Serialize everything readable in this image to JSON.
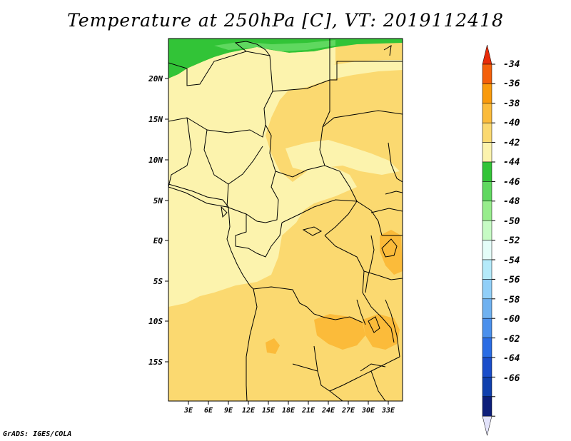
{
  "title": "Temperature at 250hPa [C], VT: 2019112418",
  "credit": "GrADS: IGES/COLA",
  "map": {
    "lat_ticks": [
      "20N",
      "15N",
      "10N",
      "5N",
      "EQ",
      "5S",
      "10S",
      "15S"
    ],
    "lon_ticks": [
      "3E",
      "6E",
      "9E",
      "12E",
      "15E",
      "18E",
      "21E",
      "24E",
      "27E",
      "30E",
      "33E"
    ]
  },
  "colorbar": {
    "labels": [
      "-34",
      "-36",
      "-38",
      "-40",
      "-42",
      "-44",
      "-46",
      "-48",
      "-50",
      "-52",
      "-54",
      "-56",
      "-58",
      "-60",
      "-62",
      "-64",
      "-66"
    ],
    "colors": [
      "#e82c0a",
      "#f45f0a",
      "#f99a0c",
      "#fbbb3a",
      "#fbd970",
      "#fcf3ad",
      "#32c437",
      "#5fd85f",
      "#97ed8c",
      "#c6fbc4",
      "#e4fdf8",
      "#b4eafa",
      "#91cff8",
      "#6fb1f0",
      "#4b90ec",
      "#2a6ce4",
      "#1a4dca",
      "#103fad",
      "#0d1e7a",
      "#e3e3fb"
    ]
  }
}
